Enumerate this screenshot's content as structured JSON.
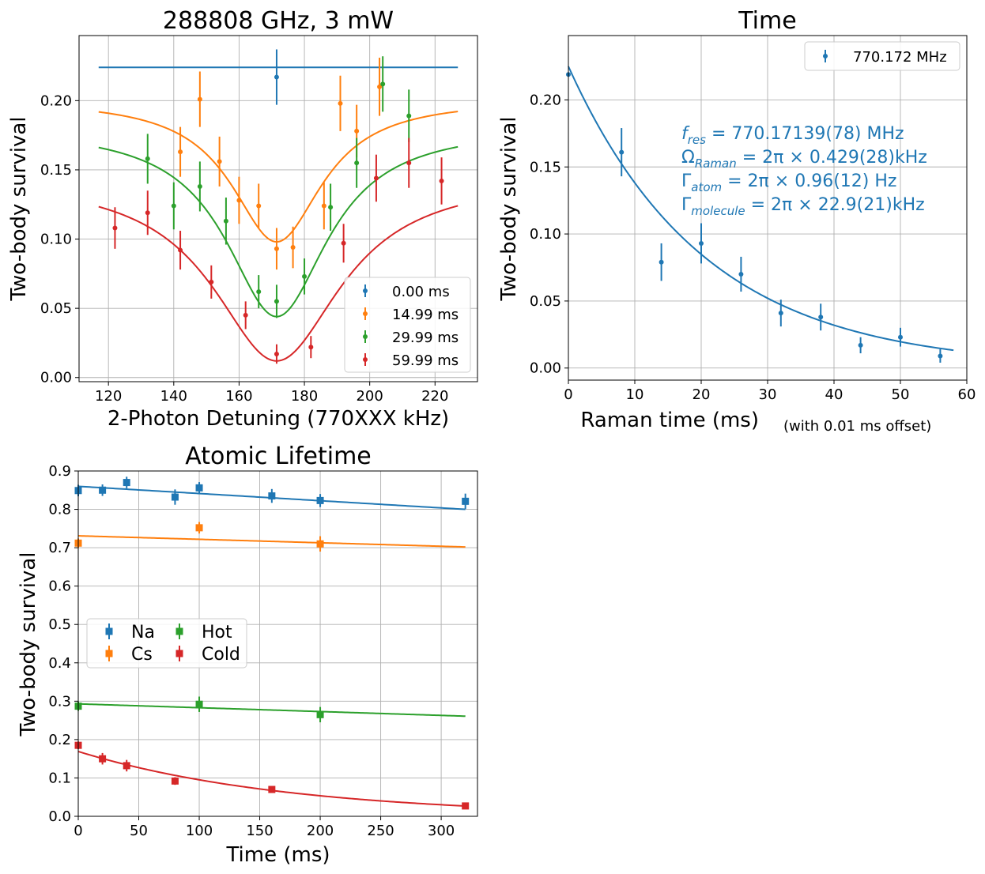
{
  "chart_data": [
    {
      "type": "scatter",
      "title": "288808 GHz, 3 mW",
      "xlabel": "2-Photon Detuning (770XXX kHz)",
      "ylabel": "Two-body survival",
      "xlim": [
        111,
        233
      ],
      "ylim": [
        -0.003,
        0.247
      ],
      "xticks": [
        120,
        140,
        160,
        180,
        200,
        220
      ],
      "yticks": [
        0.0,
        0.05,
        0.1,
        0.15,
        0.2
      ],
      "ytick_labels": [
        "0.00",
        "0.05",
        "0.10",
        "0.15",
        "0.20"
      ],
      "grid": true,
      "legend_position": "lower-right",
      "series": [
        {
          "name": "0.00 ms",
          "color": "#1f77b4",
          "points": [
            [
              171.5,
              0.217,
              0.02
            ]
          ],
          "fit": {
            "kind": "flat",
            "value": 0.224,
            "x_range": [
              117,
              227
            ]
          }
        },
        {
          "name": "14.99 ms",
          "color": "#ff7f0e",
          "points": [
            [
              148,
              0.201,
              0.02
            ],
            [
              142,
              0.163,
              0.018
            ],
            [
              154,
              0.156,
              0.018
            ],
            [
              160,
              0.128,
              0.017
            ],
            [
              166,
              0.124,
              0.016
            ],
            [
              171.5,
              0.093,
              0.015
            ],
            [
              176.5,
              0.094,
              0.015
            ],
            [
              186,
              0.124,
              0.017
            ],
            [
              191,
              0.198,
              0.02
            ],
            [
              196,
              0.178,
              0.019
            ],
            [
              203,
              0.21,
              0.021
            ]
          ],
          "fit": {
            "kind": "lorentz-dip",
            "baseline": 0.201,
            "depth": 0.103,
            "center": 171.5,
            "width": 17,
            "x_range": [
              117,
              227
            ]
          }
        },
        {
          "name": "29.99 ms",
          "color": "#2ca02c",
          "points": [
            [
              132,
              0.158,
              0.018
            ],
            [
              140,
              0.124,
              0.017
            ],
            [
              148,
              0.138,
              0.018
            ],
            [
              156,
              0.113,
              0.017
            ],
            [
              166,
              0.062,
              0.012
            ],
            [
              171.5,
              0.055,
              0.012
            ],
            [
              180,
              0.073,
              0.013
            ],
            [
              188,
              0.123,
              0.017
            ],
            [
              196,
              0.155,
              0.018
            ],
            [
              204,
              0.212,
              0.02
            ],
            [
              212,
              0.189,
              0.019
            ]
          ],
          "fit": {
            "kind": "lorentz-dip",
            "baseline": 0.181,
            "depth": 0.137,
            "center": 171.5,
            "width": 19,
            "x_range": [
              117,
              227
            ]
          }
        },
        {
          "name": "59.99 ms",
          "color": "#d62728",
          "points": [
            [
              122,
              0.108,
              0.015
            ],
            [
              132,
              0.119,
              0.016
            ],
            [
              142,
              0.092,
              0.014
            ],
            [
              151.5,
              0.069,
              0.012
            ],
            [
              162,
              0.045,
              0.01
            ],
            [
              171.5,
              0.017,
              0.007
            ],
            [
              182,
              0.022,
              0.008
            ],
            [
              192,
              0.097,
              0.014
            ],
            [
              202,
              0.144,
              0.017
            ],
            [
              212,
              0.155,
              0.018
            ],
            [
              222,
              0.142,
              0.017
            ]
          ],
          "fit": {
            "kind": "lorentz-dip",
            "baseline": 0.145,
            "depth": 0.133,
            "center": 171.5,
            "width": 24,
            "x_range": [
              117,
              227
            ]
          }
        }
      ]
    },
    {
      "type": "scatter",
      "title": "Time",
      "xlabel": "Raman time (ms)",
      "xlabel_suffix": "(with 0.01 ms offset)",
      "ylabel": "Two-body survival",
      "xlim": [
        0,
        60
      ],
      "ylim": [
        -0.009,
        0.248
      ],
      "xticks": [
        0,
        10,
        20,
        30,
        40,
        50,
        60
      ],
      "yticks": [
        0.0,
        0.05,
        0.1,
        0.15,
        0.2
      ],
      "ytick_labels": [
        "0.00",
        "0.05",
        "0.10",
        "0.15",
        "0.20"
      ],
      "grid": true,
      "legend_position": "top-right",
      "series": [
        {
          "name": "770.172 MHz",
          "color": "#1f77b4",
          "points": [
            [
              0,
              0.219,
              0.0
            ],
            [
              8,
              0.161,
              0.018
            ],
            [
              14,
              0.079,
              0.014
            ],
            [
              20,
              0.093,
              0.015
            ],
            [
              26,
              0.07,
              0.013
            ],
            [
              32,
              0.041,
              0.01
            ],
            [
              38,
              0.038,
              0.01
            ],
            [
              44,
              0.017,
              0.006
            ],
            [
              50,
              0.023,
              0.007
            ],
            [
              56,
              0.009,
              0.005
            ]
          ],
          "fit": {
            "kind": "exp",
            "offset": 0.0,
            "amp": 0.225,
            "tau": 20.5,
            "x_range": [
              0,
              58
            ]
          }
        }
      ],
      "annotations": [
        {
          "label": "f",
          "sub": "res",
          "rest": " = 770.17139(78) MHz"
        },
        {
          "label": "Ω",
          "sub": "Raman",
          "rest": " = 2π × 0.429(28)kHz"
        },
        {
          "label": "Γ",
          "sub": "atom",
          "rest": " = 2π × 0.96(12) Hz"
        },
        {
          "label": "Γ",
          "sub": "molecule",
          "rest": " = 2π × 22.9(21)kHz"
        }
      ]
    },
    {
      "type": "scatter",
      "title": "Atomic Lifetime",
      "xlabel": "Time (ms)",
      "ylabel": "Two-body survival",
      "xlim": [
        0,
        330
      ],
      "ylim": [
        0.0,
        0.9
      ],
      "xticks": [
        0,
        50,
        100,
        150,
        200,
        250,
        300
      ],
      "yticks": [
        0.0,
        0.1,
        0.2,
        0.3,
        0.4,
        0.5,
        0.6,
        0.7,
        0.8,
        0.9
      ],
      "ytick_labels": [
        "0.0",
        "0.1",
        "0.2",
        "0.3",
        "0.4",
        "0.5",
        "0.6",
        "0.7",
        "0.8",
        "0.9"
      ],
      "grid": true,
      "legend_position": "center-left",
      "series": [
        {
          "name": "Na",
          "color": "#1f77b4",
          "points": [
            [
              0,
              0.849,
              0.015
            ],
            [
              20,
              0.85,
              0.015
            ],
            [
              40,
              0.87,
              0.015
            ],
            [
              80,
              0.832,
              0.02
            ],
            [
              100,
              0.856,
              0.015
            ],
            [
              160,
              0.835,
              0.018
            ],
            [
              200,
              0.823,
              0.017
            ],
            [
              320,
              0.821,
              0.02
            ]
          ],
          "fit": {
            "kind": "linear",
            "y0": 0.86,
            "y1": 0.8,
            "x_range": [
              0,
              320
            ]
          }
        },
        {
          "name": "Cs",
          "color": "#ff7f0e",
          "points": [
            [
              0,
              0.712,
              0.012
            ],
            [
              100,
              0.752,
              0.015
            ],
            [
              200,
              0.71,
              0.02
            ]
          ],
          "fit": {
            "kind": "linear",
            "y0": 0.731,
            "y1": 0.702,
            "x_range": [
              0,
              320
            ]
          }
        },
        {
          "name": "Hot",
          "color": "#2ca02c",
          "points": [
            [
              0,
              0.287,
              0.012
            ],
            [
              100,
              0.292,
              0.02
            ],
            [
              200,
              0.265,
              0.02
            ]
          ],
          "fit": {
            "kind": "linear",
            "y0": 0.293,
            "y1": 0.261,
            "x_range": [
              0,
              320
            ]
          }
        },
        {
          "name": "Cold",
          "color": "#d62728",
          "points": [
            [
              0,
              0.185,
              0.01
            ],
            [
              20,
              0.15,
              0.015
            ],
            [
              40,
              0.132,
              0.015
            ],
            [
              80,
              0.092,
              0.01
            ],
            [
              160,
              0.07,
              0.008
            ],
            [
              320,
              0.027,
              0.005
            ]
          ],
          "fit": {
            "kind": "exp",
            "offset": 0.0,
            "amp": 0.169,
            "tau": 174,
            "x_range": [
              0,
              320
            ]
          }
        }
      ]
    }
  ]
}
